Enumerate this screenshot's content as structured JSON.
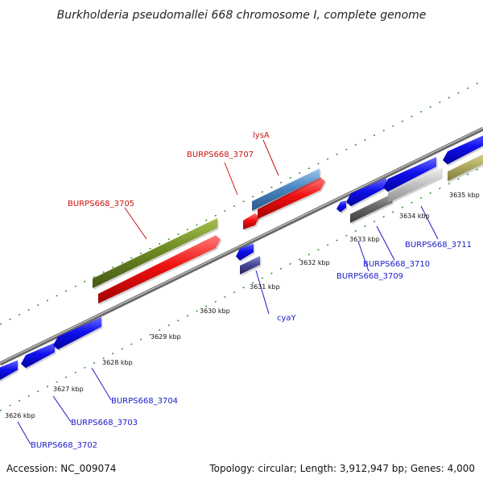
{
  "title": "Burkholderia pseudomallei 668 chromosome I, complete genome",
  "footer": {
    "accession": "Accession: NC_009074",
    "summary": "Topology: circular; Length: 3,912,947 bp; Genes: 4,000"
  },
  "colors": {
    "backbone": "#8a8a8a",
    "tick": "#1f8a1f",
    "label_blue": "#1a1acc",
    "label_red": "#cc1111"
  },
  "kbp_ticks": [
    {
      "label": "3626 kbp"
    },
    {
      "label": "3627 kbp"
    },
    {
      "label": "3628 kbp"
    },
    {
      "label": "3629 kbp"
    },
    {
      "label": "3630 kbp"
    },
    {
      "label": "3631 kbp"
    },
    {
      "label": "3632 kbp"
    },
    {
      "label": "3633 kbp"
    },
    {
      "label": "3634 kbp"
    },
    {
      "label": "3635 kbp"
    }
  ],
  "feature_labels": [
    {
      "text": "BURPS668_3702",
      "color": "#1a1acc"
    },
    {
      "text": "BURPS668_3703",
      "color": "#1a1acc"
    },
    {
      "text": "BURPS668_3704",
      "color": "#1a1acc"
    },
    {
      "text": "BURPS668_3705",
      "color": "#cc1111"
    },
    {
      "text": "BURPS668_3707",
      "color": "#cc1111"
    },
    {
      "text": "lysA",
      "color": "#cc1111"
    },
    {
      "text": "cyaY",
      "color": "#1a1acc"
    },
    {
      "text": "BURPS668_3709",
      "color": "#1a1acc"
    },
    {
      "text": "BURPS668_3710",
      "color": "#1a1acc"
    },
    {
      "text": "BURPS668_3711",
      "color": "#1a1acc"
    }
  ]
}
